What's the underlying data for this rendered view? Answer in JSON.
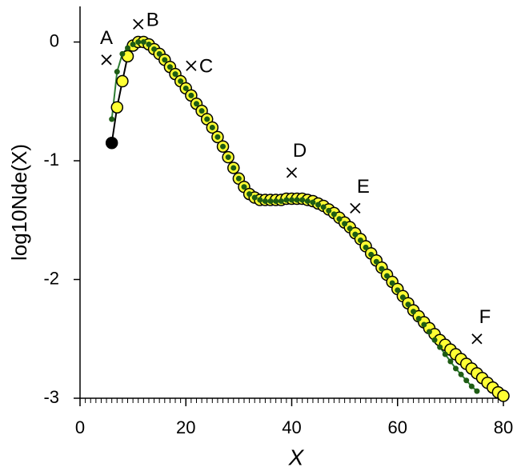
{
  "chart_data": {
    "type": "line",
    "x_label": "X",
    "y_label": "log10Nde(X)",
    "xlim": [
      0,
      80
    ],
    "xticks": [
      0,
      20,
      40,
      60,
      80
    ],
    "ylim": [
      -3,
      0.3
    ],
    "yticks": [
      0,
      -1,
      -2,
      -3
    ],
    "series": [
      {
        "color": "#ffff33",
        "line_color": "#000000",
        "first_point_color": "#000000",
        "marker": "large",
        "x": [
          6,
          7,
          8,
          9,
          10,
          11,
          12,
          13,
          14,
          15,
          16,
          17,
          18,
          19,
          20,
          21,
          22,
          23,
          24,
          25,
          26,
          27,
          28,
          29,
          30,
          31,
          32,
          33,
          34,
          35,
          36,
          37,
          38,
          39,
          40,
          41,
          42,
          43,
          44,
          45,
          46,
          47,
          48,
          49,
          50,
          51,
          52,
          53,
          54,
          55,
          56,
          57,
          58,
          59,
          60,
          61,
          62,
          63,
          64,
          65,
          66,
          67,
          68,
          69,
          70,
          71,
          72,
          73,
          74,
          75,
          76,
          77,
          78,
          79,
          80
        ],
        "values": [
          -0.85,
          -0.55,
          -0.33,
          -0.12,
          -0.03,
          0.0,
          0.0,
          -0.02,
          -0.06,
          -0.1,
          -0.15,
          -0.21,
          -0.27,
          -0.33,
          -0.39,
          -0.45,
          -0.52,
          -0.58,
          -0.65,
          -0.72,
          -0.8,
          -0.88,
          -0.97,
          -1.06,
          -1.15,
          -1.22,
          -1.28,
          -1.31,
          -1.33,
          -1.33,
          -1.33,
          -1.33,
          -1.33,
          -1.32,
          -1.32,
          -1.32,
          -1.32,
          -1.33,
          -1.34,
          -1.36,
          -1.38,
          -1.41,
          -1.44,
          -1.48,
          -1.52,
          -1.56,
          -1.61,
          -1.66,
          -1.72,
          -1.78,
          -1.84,
          -1.9,
          -1.96,
          -2.02,
          -2.08,
          -2.14,
          -2.2,
          -2.26,
          -2.31,
          -2.36,
          -2.41,
          -2.46,
          -2.51,
          -2.55,
          -2.59,
          -2.63,
          -2.67,
          -2.71,
          -2.75,
          -2.79,
          -2.83,
          -2.87,
          -2.91,
          -2.95,
          -2.98
        ]
      },
      {
        "color": "#1e5c14",
        "line_color": "#2e7d32",
        "marker": "small",
        "x": [
          6,
          7,
          8,
          9,
          10,
          11,
          12,
          13,
          14,
          15,
          16,
          17,
          18,
          19,
          20,
          21,
          22,
          23,
          24,
          25,
          26,
          27,
          28,
          29,
          30,
          31,
          32,
          33,
          34,
          35,
          36,
          37,
          38,
          39,
          40,
          41,
          42,
          43,
          44,
          45,
          46,
          47,
          48,
          49,
          50,
          51,
          52,
          53,
          54,
          55,
          56,
          57,
          58,
          59,
          60,
          61,
          62,
          63,
          64,
          65,
          66,
          67,
          68,
          69,
          70,
          71,
          72,
          73,
          74,
          75
        ],
        "values": [
          -0.65,
          -0.25,
          -0.1,
          -0.05,
          -0.02,
          0.0,
          0.0,
          -0.02,
          -0.06,
          -0.1,
          -0.15,
          -0.21,
          -0.27,
          -0.33,
          -0.39,
          -0.45,
          -0.52,
          -0.58,
          -0.65,
          -0.72,
          -0.8,
          -0.88,
          -0.97,
          -1.06,
          -1.15,
          -1.22,
          -1.28,
          -1.31,
          -1.33,
          -1.34,
          -1.34,
          -1.34,
          -1.34,
          -1.33,
          -1.33,
          -1.33,
          -1.33,
          -1.34,
          -1.35,
          -1.37,
          -1.39,
          -1.42,
          -1.45,
          -1.49,
          -1.53,
          -1.57,
          -1.62,
          -1.67,
          -1.73,
          -1.79,
          -1.85,
          -1.91,
          -1.97,
          -2.03,
          -2.09,
          -2.15,
          -2.21,
          -2.27,
          -2.33,
          -2.38,
          -2.44,
          -2.51,
          -2.57,
          -2.63,
          -2.69,
          -2.75,
          -2.8,
          -2.85,
          -2.9,
          -2.94
        ]
      }
    ],
    "annotations": [
      {
        "label": "A",
        "x": 5,
        "y": -0.15
      },
      {
        "label": "B",
        "x": 11,
        "y": 0.15
      },
      {
        "label": "C",
        "x": 21,
        "y": -0.2
      },
      {
        "label": "D",
        "x": 40,
        "y": -1.1
      },
      {
        "label": "E",
        "x": 52,
        "y": -1.4
      },
      {
        "label": "F",
        "x": 75,
        "y": -2.5
      }
    ]
  }
}
